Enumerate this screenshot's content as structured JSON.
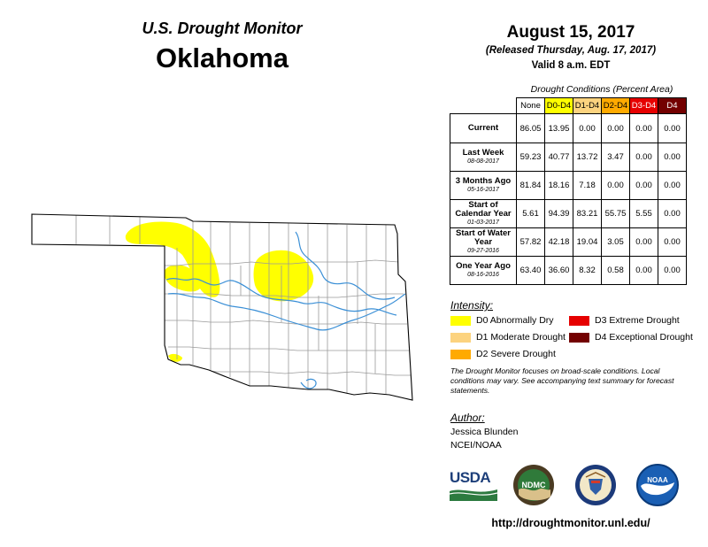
{
  "header": {
    "monitor": "U.S. Drought Monitor",
    "state": "Oklahoma",
    "date": "August 15, 2017",
    "released": "(Released Thursday, Aug. 17, 2017)",
    "valid": "Valid 8 a.m. EDT"
  },
  "table": {
    "title": "Drought Conditions (Percent Area)",
    "columns": [
      "None",
      "D0-D4",
      "D1-D4",
      "D2-D4",
      "D3-D4",
      "D4"
    ],
    "column_colors": [
      "#ffffff",
      "#ffff00",
      "#fcd37f",
      "#ffaa00",
      "#e60000",
      "#730000"
    ],
    "rows": [
      {
        "label": "Current",
        "date": "",
        "values": [
          "86.05",
          "13.95",
          "0.00",
          "0.00",
          "0.00",
          "0.00"
        ]
      },
      {
        "label": "Last Week",
        "date": "08-08-2017",
        "values": [
          "59.23",
          "40.77",
          "13.72",
          "3.47",
          "0.00",
          "0.00"
        ]
      },
      {
        "label": "3 Months Ago",
        "date": "05-16-2017",
        "values": [
          "81.84",
          "18.16",
          "7.18",
          "0.00",
          "0.00",
          "0.00"
        ]
      },
      {
        "label": "Start of Calendar Year",
        "date": "01-03-2017",
        "values": [
          "5.61",
          "94.39",
          "83.21",
          "55.75",
          "5.55",
          "0.00"
        ]
      },
      {
        "label": "Start of Water Year",
        "date": "09-27-2016",
        "values": [
          "57.82",
          "42.18",
          "19.04",
          "3.05",
          "0.00",
          "0.00"
        ]
      },
      {
        "label": "One Year Ago",
        "date": "08-16-2016",
        "values": [
          "63.40",
          "36.60",
          "8.32",
          "0.58",
          "0.00",
          "0.00"
        ]
      }
    ]
  },
  "legend": {
    "title": "Intensity:",
    "items": [
      {
        "label": "D0 Abnormally Dry",
        "color": "#ffff00"
      },
      {
        "label": "D1 Moderate Drought",
        "color": "#fcd37f"
      },
      {
        "label": "D2 Severe Drought",
        "color": "#ffaa00"
      },
      {
        "label": "D3 Extreme Drought",
        "color": "#e60000"
      },
      {
        "label": "D4 Exceptional Drought",
        "color": "#730000"
      }
    ]
  },
  "disclaimer": "The Drought Monitor focuses on broad-scale conditions. Local conditions may vary. See accompanying text summary for forecast statements.",
  "author": {
    "title": "Author:",
    "name": "Jessica Blunden",
    "org": "NCEI/NOAA"
  },
  "logos": {
    "usda": "USDA",
    "ndmc": "NDMC",
    "noaa": "NOAA"
  },
  "url": "http://droughtmonitor.unl.edu/",
  "map": {
    "drought_color": "#ffff00",
    "river_color": "#3a8fd6",
    "outline_color": "#000000",
    "county_color": "#9a9a9a"
  }
}
